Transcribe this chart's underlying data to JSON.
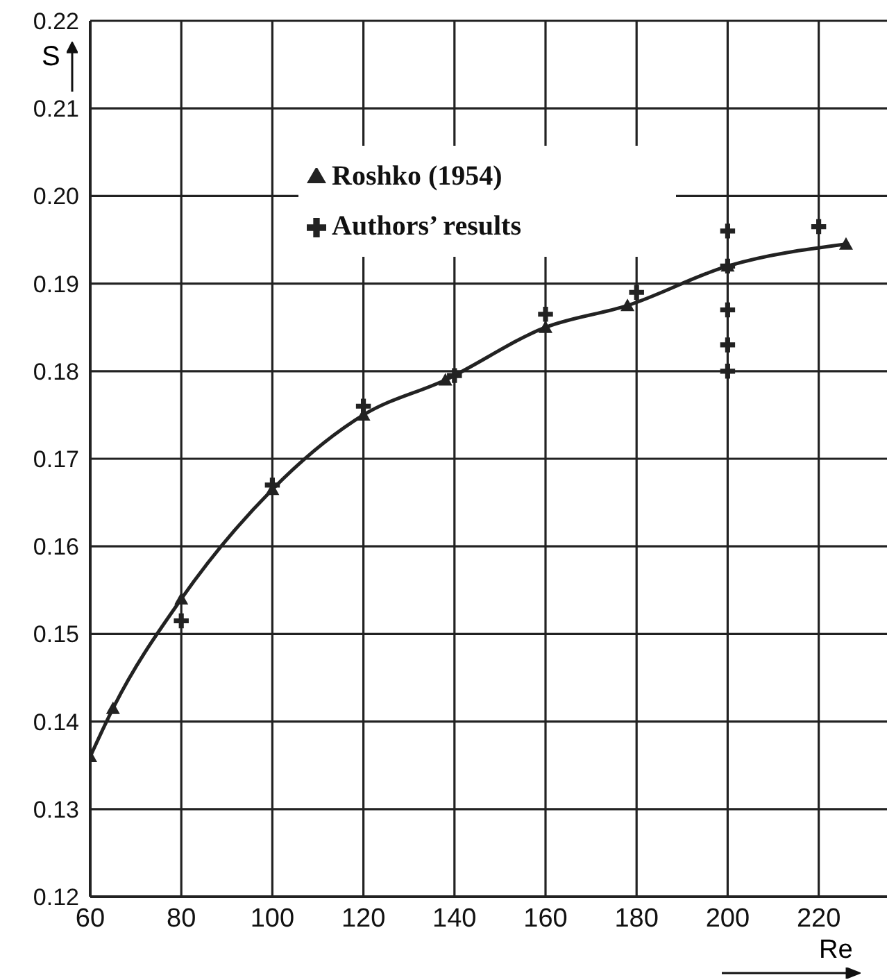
{
  "chart_data": {
    "type": "line",
    "xlabel": "Re",
    "ylabel": "S",
    "xlim": [
      60,
      235
    ],
    "xticks": [
      60,
      80,
      100,
      120,
      140,
      160,
      180,
      200,
      220
    ],
    "ylim": [
      0.12,
      0.22
    ],
    "yticks": [
      0.12,
      0.13,
      0.14,
      0.15,
      0.16,
      0.17,
      0.18,
      0.19,
      {
        "value": 0.2,
        "label": "0.20"
      },
      0.21,
      0.22
    ],
    "grid": true,
    "legend": "top left",
    "series": [
      {
        "name": "Roshko (1954)",
        "color": "#222222",
        "marker": "triangle",
        "x": [
          60,
          65,
          80,
          100,
          120,
          138,
          160,
          178,
          200,
          226
        ],
        "values": [
          0.136,
          0.1415,
          0.154,
          0.1665,
          0.175,
          0.179,
          0.185,
          0.1875,
          0.192,
          0.1945
        ]
      },
      {
        "name": "Authors’ results",
        "type": "scatter",
        "color": "#222222",
        "marker": "cross",
        "x": [
          80,
          100,
          120,
          140,
          160,
          180,
          200,
          200,
          200,
          200,
          200,
          220
        ],
        "values": [
          0.1515,
          0.167,
          0.176,
          0.1795,
          0.1865,
          0.189,
          0.196,
          0.192,
          0.187,
          0.183,
          0.18,
          0.1965
        ]
      }
    ]
  }
}
